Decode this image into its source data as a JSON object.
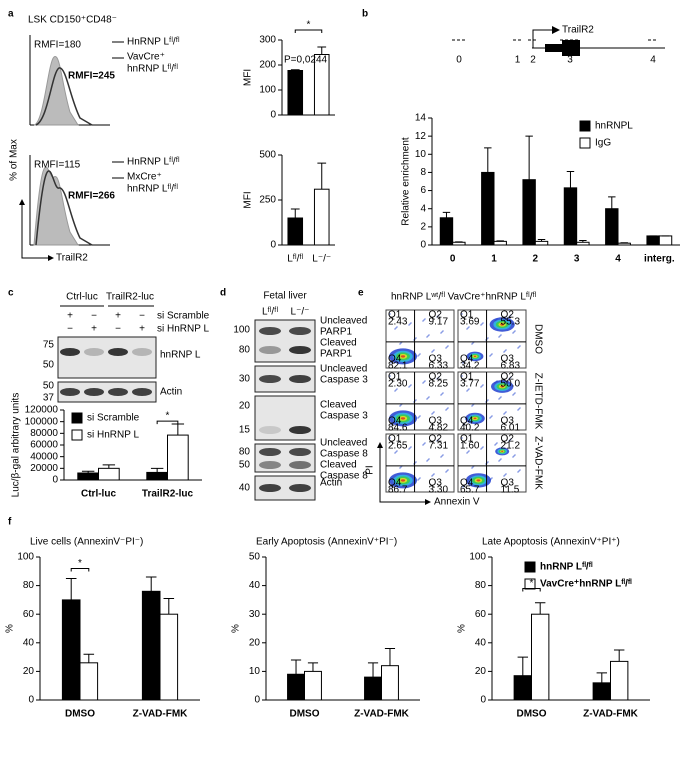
{
  "panel_labels": [
    "a",
    "b",
    "c",
    "d",
    "e",
    "f"
  ],
  "panel_a": {
    "gate": "LSK CD150⁺CD48⁻",
    "legend_top": [
      "HnRNP Lᶠˡ/ᶠˡ",
      "VavCre⁺",
      "hnRNP Lᶠˡ/ᶠˡ"
    ],
    "rmfi_top": [
      "RMFI=180",
      "RMFI=245"
    ],
    "legend_bottom": [
      "HnRNP Lᶠˡ/ᶠˡ",
      "MxCre⁺",
      "hnRNP Lᶠˡ/ᶠˡ"
    ],
    "rmfi_bottom": [
      "RMFI=115",
      "RMFI=266"
    ],
    "ylabel": "% of Max",
    "xlabel": "TrailR2"
  },
  "panel_b": {
    "gene": "TrailR2",
    "sites": [
      "0",
      "1",
      "2",
      "3",
      "4"
    ]
  },
  "panel_c": {
    "groups": [
      "Ctrl-luc",
      "TrailR2-luc"
    ],
    "row_labels": [
      "si Scramble",
      "si HnRNP L"
    ],
    "signs": [
      [
        "+",
        "−",
        "+",
        "−"
      ],
      [
        "−",
        "+",
        "−",
        "+"
      ]
    ],
    "markers": [
      [
        "75",
        "50"
      ],
      [
        "50",
        "37"
      ]
    ],
    "bands": [
      "hnRNP L",
      "Actin"
    ]
  },
  "panel_d": {
    "title": "Fetal liver",
    "lanes": [
      "Lᶠˡ/ᶠˡ",
      "L⁻/⁻"
    ],
    "blots": [
      {
        "markers": [
          "100",
          "80"
        ],
        "labels": [
          [
            "Uncleaved",
            "PARP1"
          ],
          [
            "Cleaved",
            "PARP1"
          ]
        ]
      },
      {
        "markers": [
          "30"
        ],
        "labels": [
          [
            "Uncleaved",
            "Caspase 3"
          ]
        ]
      },
      {
        "markers": [
          "20",
          "15"
        ],
        "labels": [
          [
            "Cleaved",
            "Caspase 3"
          ]
        ]
      },
      {
        "markers": [
          "80",
          "50"
        ],
        "labels": [
          [
            "Uncleaved",
            "Caspase 8"
          ],
          [
            "Cleaved",
            "Caspase 8"
          ]
        ]
      },
      {
        "markers": [
          "40"
        ],
        "labels": [
          [
            "Actin"
          ]
        ]
      }
    ]
  },
  "panel_e": {
    "columns": [
      "hnRNP Lʷᵗ/ᶠˡ",
      "VavCre⁺hnRNP Lᶠˡ/ᶠˡ"
    ],
    "rows": [
      "DMSO",
      "Z-IETD-FMK",
      "Z-VAD-FMK"
    ],
    "quadrant_names": [
      "Q1",
      "Q2",
      "Q3",
      "Q4"
    ],
    "quadrants": [
      [
        [
          "2.43",
          "9.17",
          "6.33",
          "82.1"
        ],
        [
          "3.69",
          "55.3",
          "6.83",
          "34.2"
        ]
      ],
      [
        [
          "2.30",
          "8.25",
          "4.82",
          "84.6"
        ],
        [
          "3.77",
          "50.0",
          "6.01",
          "40.2"
        ]
      ],
      [
        [
          "2.65",
          "7.31",
          "3.30",
          "86.7"
        ],
        [
          "1.60",
          "21.2",
          "11.5",
          "65.7"
        ]
      ]
    ],
    "xlabel": "Annexin V",
    "ylabel": "PI"
  },
  "chart_data": [
    {
      "type": "bar",
      "ylabel": "MFI",
      "ylim": [
        0,
        300
      ],
      "yticks": [
        0,
        100,
        200,
        300
      ],
      "series": [
        {
          "colors": [
            "#000000",
            "#ffffff"
          ],
          "values": [
            178,
            242
          ],
          "errors": [
            3,
            30
          ]
        }
      ],
      "annotations": [
        "P=0,0244",
        "*"
      ]
    },
    {
      "type": "bar",
      "ylabel": "MFI",
      "ylim": [
        0,
        500
      ],
      "yticks": [
        0,
        250,
        500
      ],
      "categories": [
        "Lᶠˡ/ᶠˡ",
        "L⁻/⁻"
      ],
      "series": [
        {
          "colors": [
            "#000000",
            "#ffffff"
          ],
          "values": [
            150,
            310
          ],
          "errors": [
            50,
            145
          ]
        }
      ]
    },
    {
      "type": "bar",
      "ylabel": "Relative enrichment",
      "ylim": [
        0,
        14
      ],
      "yticks": [
        0,
        2,
        4,
        6,
        8,
        10,
        12,
        14
      ],
      "categories": [
        "0",
        "1",
        "2",
        "3",
        "4",
        "interg."
      ],
      "legend": "upper right",
      "series": [
        {
          "name": "hnRNPL",
          "color": "#000000",
          "values": [
            3,
            8,
            7.2,
            6.3,
            4,
            1
          ],
          "errors": [
            0.6,
            2.7,
            4.8,
            1.8,
            1.3,
            0
          ]
        },
        {
          "name": "IgG",
          "color": "#ffffff",
          "values": [
            0.3,
            0.4,
            0.4,
            0.3,
            0.2,
            1
          ],
          "errors": [
            0.05,
            0.05,
            0.2,
            0.2,
            0.05,
            0
          ]
        }
      ]
    },
    {
      "type": "bar",
      "ylabel": "Luc/β-gal arbitrary units",
      "ylim": [
        0,
        120000
      ],
      "yticks": [
        0,
        20000,
        40000,
        60000,
        80000,
        100000,
        120000
      ],
      "categories": [
        "Ctrl-luc",
        "TrailR2-luc"
      ],
      "legend": "upper left",
      "series": [
        {
          "name": "si Scramble",
          "color": "#000000",
          "values": [
            12000,
            13000
          ],
          "errors": [
            3000,
            7000
          ]
        },
        {
          "name": "si HnRNP L",
          "color": "#ffffff",
          "values": [
            20000,
            77000
          ],
          "errors": [
            6000,
            19000
          ]
        }
      ],
      "annotations": [
        "*"
      ]
    },
    {
      "type": "bar",
      "title": "Live cells (AnnexinV⁻PI⁻)",
      "ylabel": "%",
      "ylim": [
        0,
        100
      ],
      "yticks": [
        0,
        20,
        40,
        60,
        80,
        100
      ],
      "categories": [
        "DMSO",
        "Z-VAD-FMK"
      ],
      "series": [
        {
          "color": "#000000",
          "values": [
            70,
            76
          ],
          "errors": [
            15,
            10
          ]
        },
        {
          "color": "#ffffff",
          "values": [
            26,
            60
          ],
          "errors": [
            6,
            11
          ]
        }
      ],
      "annotations": [
        "*"
      ]
    },
    {
      "type": "bar",
      "title": "Early Apoptosis (AnnexinV⁺PI⁻)",
      "ylabel": "%",
      "ylim": [
        0,
        50
      ],
      "yticks": [
        0,
        10,
        20,
        30,
        40,
        50
      ],
      "categories": [
        "DMSO",
        "Z-VAD-FMK"
      ],
      "series": [
        {
          "color": "#000000",
          "values": [
            9,
            8
          ],
          "errors": [
            5,
            5
          ]
        },
        {
          "color": "#ffffff",
          "values": [
            10,
            12
          ],
          "errors": [
            3,
            6
          ]
        }
      ]
    },
    {
      "type": "bar",
      "title": "Late Apoptosis (AnnexinV⁺PI⁺)",
      "ylabel": "%",
      "ylim": [
        0,
        100
      ],
      "yticks": [
        0,
        20,
        40,
        60,
        80,
        100
      ],
      "categories": [
        "DMSO",
        "Z-VAD-FMK"
      ],
      "legend": "upper right",
      "series": [
        {
          "name": "hnRNP Lᶠˡ/ᶠˡ",
          "color": "#000000",
          "values": [
            17,
            12
          ],
          "errors": [
            13,
            7
          ]
        },
        {
          "name": "VavCre⁺hnRNP Lᶠˡ/ᶠˡ",
          "color": "#ffffff",
          "values": [
            60,
            27
          ],
          "errors": [
            8,
            8
          ]
        }
      ],
      "annotations": [
        "*"
      ]
    }
  ]
}
